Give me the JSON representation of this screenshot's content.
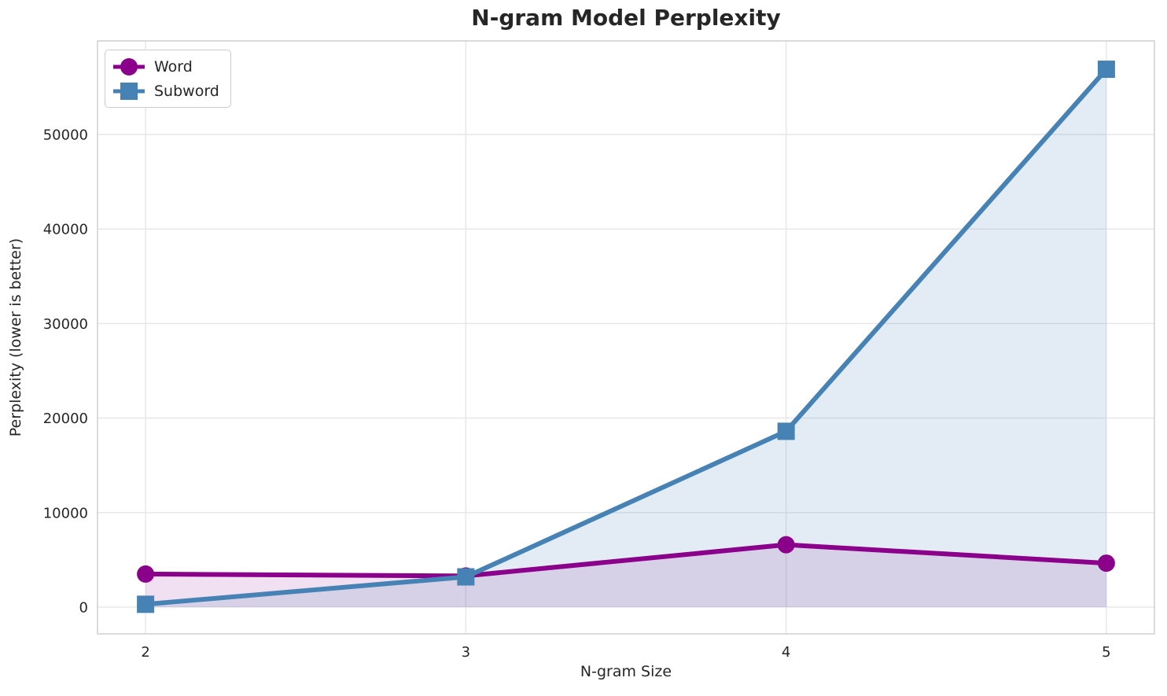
{
  "chart_data": {
    "type": "line",
    "title": "N-gram Model Perplexity",
    "xlabel": "N-gram Size",
    "ylabel": "Perplexity (lower is better)",
    "x": [
      2,
      3,
      4,
      5
    ],
    "series": [
      {
        "name": "Word",
        "marker": "circle",
        "color": "#8B008B",
        "fill_alpha": 0.12,
        "values": [
          3500,
          3300,
          6600,
          4650
        ]
      },
      {
        "name": "Subword",
        "marker": "square",
        "color": "#4682B4",
        "fill_alpha": 0.15,
        "values": [
          300,
          3200,
          18600,
          56900
        ]
      }
    ],
    "xticks": [
      2,
      3,
      4,
      5
    ],
    "yticks": [
      0,
      10000,
      20000,
      30000,
      40000,
      50000
    ],
    "xlim": [
      1.85,
      5.15
    ],
    "ylim": [
      -2830,
      59900
    ],
    "grid": true,
    "area_fill_baseline": 0,
    "legend_position": "upper left"
  },
  "style_colors": {
    "text": "#262626",
    "grid": "#e6e6e6",
    "spine": "#cccccc",
    "background": "#ffffff"
  }
}
